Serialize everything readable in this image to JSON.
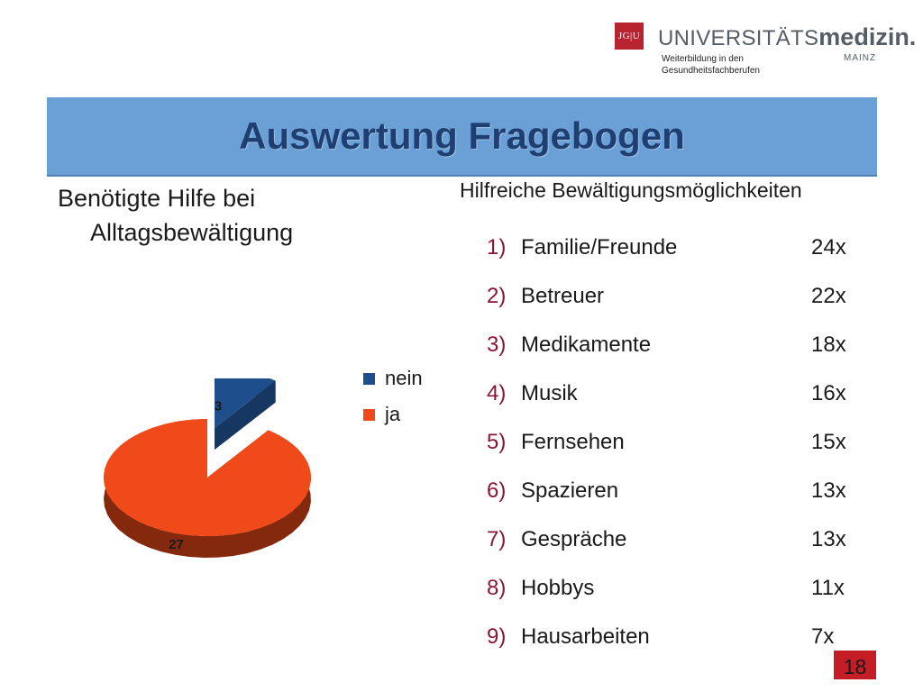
{
  "logo": {
    "badge_text": "JG|U",
    "word_light": "UNIVERSITÄTS",
    "word_bold": "medizin.",
    "tagline_line1": "Weiterbildung in den",
    "tagline_line2": "Gesundheitsfachberufen",
    "city": "MAINZ"
  },
  "title": "Auswertung Fragebogen",
  "left": {
    "heading_line1": "Benötigte Hilfe bei",
    "heading_line2": "Alltagsbewältigung"
  },
  "chart_data": {
    "type": "pie",
    "labels": [
      "nein",
      "ja"
    ],
    "values": [
      3,
      27
    ],
    "colors": [
      "#1f4e8c",
      "#f04a1a"
    ],
    "legend": "right",
    "data_labels": [
      "3",
      "27"
    ]
  },
  "right": {
    "heading": "Hilfreiche Bewältigungsmöglichkeiten",
    "items": [
      {
        "num": "1)",
        "label": "Familie/Freunde",
        "count": "24x"
      },
      {
        "num": "2)",
        "label": "Betreuer",
        "count": "22x"
      },
      {
        "num": "3)",
        "label": "Medikamente",
        "count": "18x"
      },
      {
        "num": "4)",
        "label": "Musik",
        "count": "16x"
      },
      {
        "num": "5)",
        "label": "Fernsehen",
        "count": "15x"
      },
      {
        "num": "6)",
        "label": "Spazieren",
        "count": "13x"
      },
      {
        "num": "7)",
        "label": "Gespräche",
        "count": "13x"
      },
      {
        "num": "8)",
        "label": "Hobbys",
        "count": "11x"
      },
      {
        "num": "9)",
        "label": "Hausarbeiten",
        "count": "7x"
      }
    ]
  },
  "page_number": "18",
  "colors": {
    "title_bar": "#6aa0d6",
    "title_text": "#1f3f72",
    "list_number": "#8a1538",
    "page_badge": "#c51d25"
  }
}
